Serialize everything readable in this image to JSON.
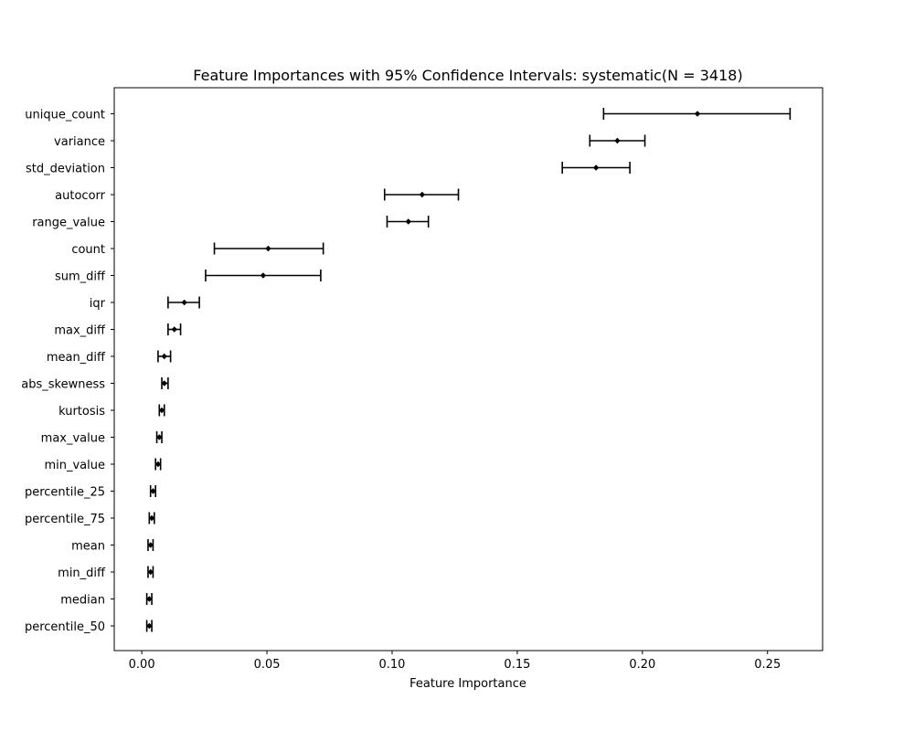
{
  "chart_data": {
    "type": "errorbar",
    "title": "Feature Importances with 95% Confidence Intervals: systematic(N = 3418)",
    "xlabel": "Feature Importance",
    "ylabel": "",
    "xlim": [
      -0.011,
      0.272
    ],
    "xticks": [
      0.0,
      0.05,
      0.1,
      0.15,
      0.2,
      0.25
    ],
    "xtick_labels": [
      "0.00",
      "0.05",
      "0.10",
      "0.15",
      "0.20",
      "0.25"
    ],
    "grid": false,
    "color": "#000000",
    "features": [
      {
        "name": "unique_count",
        "value": 0.222,
        "lower": 0.1845,
        "upper": 0.259
      },
      {
        "name": "variance",
        "value": 0.19,
        "lower": 0.179,
        "upper": 0.201
      },
      {
        "name": "std_deviation",
        "value": 0.1815,
        "lower": 0.168,
        "upper": 0.195
      },
      {
        "name": "autocorr",
        "value": 0.112,
        "lower": 0.097,
        "upper": 0.1265
      },
      {
        "name": "range_value",
        "value": 0.1065,
        "lower": 0.098,
        "upper": 0.1145
      },
      {
        "name": "count",
        "value": 0.0505,
        "lower": 0.029,
        "upper": 0.0725
      },
      {
        "name": "sum_diff",
        "value": 0.0485,
        "lower": 0.0255,
        "upper": 0.0715
      },
      {
        "name": "iqr",
        "value": 0.017,
        "lower": 0.0105,
        "upper": 0.023
      },
      {
        "name": "max_diff",
        "value": 0.013,
        "lower": 0.0105,
        "upper": 0.0155
      },
      {
        "name": "mean_diff",
        "value": 0.009,
        "lower": 0.0065,
        "upper": 0.0115
      },
      {
        "name": "abs_skewness",
        "value": 0.009,
        "lower": 0.008,
        "upper": 0.0105
      },
      {
        "name": "kurtosis",
        "value": 0.008,
        "lower": 0.007,
        "upper": 0.009
      },
      {
        "name": "max_value",
        "value": 0.007,
        "lower": 0.006,
        "upper": 0.008
      },
      {
        "name": "min_value",
        "value": 0.0065,
        "lower": 0.0055,
        "upper": 0.0075
      },
      {
        "name": "percentile_25",
        "value": 0.0045,
        "lower": 0.0035,
        "upper": 0.0055
      },
      {
        "name": "percentile_75",
        "value": 0.004,
        "lower": 0.003,
        "upper": 0.005
      },
      {
        "name": "mean",
        "value": 0.0035,
        "lower": 0.0025,
        "upper": 0.0045
      },
      {
        "name": "min_diff",
        "value": 0.0035,
        "lower": 0.0025,
        "upper": 0.0045
      },
      {
        "name": "median",
        "value": 0.003,
        "lower": 0.002,
        "upper": 0.004
      },
      {
        "name": "percentile_50",
        "value": 0.003,
        "lower": 0.002,
        "upper": 0.004
      }
    ]
  }
}
